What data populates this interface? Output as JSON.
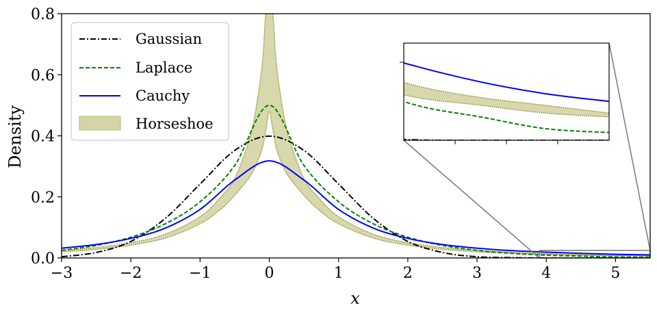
{
  "chart_data": {
    "type": "line",
    "xlabel": "x",
    "ylabel": "Density",
    "xlim": [
      -3,
      5.5
    ],
    "ylim": [
      0,
      0.8
    ],
    "xticks": [
      -3,
      -2,
      -1,
      0,
      1,
      2,
      3,
      4,
      5
    ],
    "xtick_labels": [
      "−3",
      "−2",
      "−1",
      "0",
      "1",
      "2",
      "3",
      "4",
      "5"
    ],
    "yticks": [
      0.0,
      0.2,
      0.4,
      0.6,
      0.8
    ],
    "ytick_labels": [
      "0.0",
      "0.2",
      "0.4",
      "0.6",
      "0.8"
    ],
    "series": [
      {
        "name": "Gaussian",
        "label": "Gaussian",
        "style": "dashdot",
        "color": "#000000",
        "x": [
          -3,
          -2.5,
          -2,
          -1.5,
          -1,
          -0.5,
          0,
          0.5,
          1,
          1.5,
          2,
          2.5,
          3,
          3.5,
          4,
          4.5,
          5,
          5.5
        ],
        "y": [
          0.004,
          0.018,
          0.054,
          0.13,
          0.242,
          0.352,
          0.399,
          0.352,
          0.242,
          0.13,
          0.054,
          0.018,
          0.004,
          0.001,
          0.0001,
          0.0,
          0.0,
          0.0
        ]
      },
      {
        "name": "Laplace",
        "label": "Laplace",
        "style": "dashed",
        "color": "#008000",
        "x": [
          -3,
          -2.5,
          -2,
          -1.5,
          -1,
          -0.5,
          0,
          0.5,
          1,
          1.5,
          2,
          2.5,
          3,
          3.5,
          4,
          4.5,
          5,
          5.5
        ],
        "y": [
          0.025,
          0.041,
          0.068,
          0.112,
          0.184,
          0.303,
          0.5,
          0.303,
          0.184,
          0.112,
          0.068,
          0.041,
          0.025,
          0.015,
          0.009,
          0.006,
          0.003,
          0.002
        ]
      },
      {
        "name": "Cauchy",
        "label": "Cauchy",
        "style": "solid",
        "color": "#0000ff",
        "x": [
          -3,
          -2.5,
          -2,
          -1.5,
          -1,
          -0.5,
          0,
          0.5,
          1,
          1.5,
          2,
          2.5,
          3,
          3.5,
          4,
          4.5,
          5,
          5.5
        ],
        "y": [
          0.032,
          0.044,
          0.064,
          0.098,
          0.159,
          0.255,
          0.318,
          0.255,
          0.159,
          0.098,
          0.064,
          0.044,
          0.032,
          0.024,
          0.019,
          0.015,
          0.012,
          0.01
        ]
      }
    ],
    "band": {
      "name": "Horseshoe",
      "label": "Horseshoe",
      "color": "#b8b86a",
      "edge_color": "#8a8a2a",
      "x": [
        -3,
        -2.5,
        -2,
        -1.5,
        -1,
        -0.7,
        -0.5,
        -0.3,
        -0.2,
        -0.1,
        -0.05,
        0,
        0.05,
        0.1,
        0.2,
        0.3,
        0.5,
        0.7,
        1,
        1.5,
        2,
        2.5,
        3,
        3.5,
        4,
        4.5,
        5,
        5.5
      ],
      "lower": [
        0.02,
        0.028,
        0.042,
        0.065,
        0.112,
        0.16,
        0.205,
        0.26,
        0.3,
        0.36,
        0.42,
        0.48,
        0.42,
        0.36,
        0.3,
        0.26,
        0.205,
        0.16,
        0.112,
        0.065,
        0.042,
        0.028,
        0.02,
        0.015,
        0.011,
        0.009,
        0.007,
        0.006
      ],
      "upper": [
        0.025,
        0.034,
        0.05,
        0.078,
        0.135,
        0.2,
        0.26,
        0.38,
        0.48,
        0.64,
        0.8,
        0.8,
        0.8,
        0.64,
        0.48,
        0.38,
        0.26,
        0.2,
        0.135,
        0.078,
        0.05,
        0.034,
        0.025,
        0.019,
        0.014,
        0.011,
        0.009,
        0.007
      ]
    },
    "legend": {
      "position": "top-left",
      "entries": [
        "Gaussian",
        "Laplace",
        "Cauchy",
        "Horseshoe"
      ]
    },
    "inset": {
      "xlim": [
        3.9,
        5.5
      ],
      "ylim": [
        0.0,
        0.025
      ],
      "description": "zoom of the right tail"
    }
  }
}
